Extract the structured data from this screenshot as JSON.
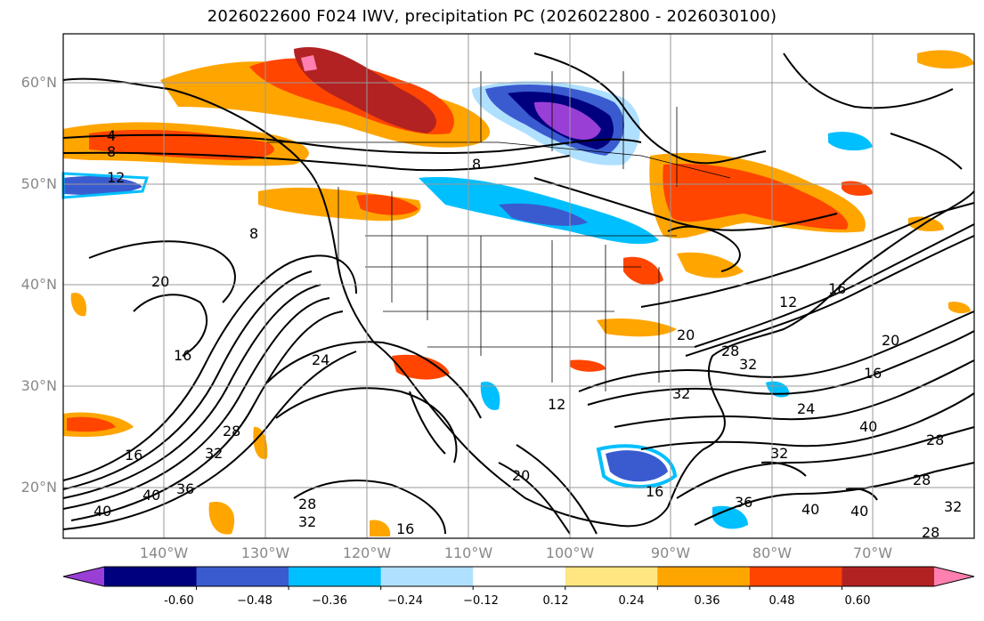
{
  "title": "2026022600 F024 IWV, precipitation PC (2026022800 - 2026030100)",
  "lat_labels": [
    "60°N",
    "50°N",
    "40°N",
    "30°N",
    "20°N"
  ],
  "lon_labels": [
    "140°W",
    "130°W",
    "120°W",
    "110°W",
    "100°W",
    "90°W",
    "80°W",
    "70°W"
  ],
  "colorbar": {
    "labels": [
      "-0.60",
      "−0.48",
      "−0.36",
      "−0.24",
      "−0.12",
      "0.12",
      "0.24",
      "0.36",
      "0.48",
      "0.60"
    ],
    "colors": [
      "#9a3fd6",
      "#00007f",
      "#3a5bd0",
      "#00bfff",
      "#b0e0ff",
      "#ffffff",
      "#ffe680",
      "#ffa500",
      "#ff4500",
      "#b22222",
      "#ff80b0"
    ]
  },
  "contour_labels": [
    "4",
    "8",
    "12",
    "16",
    "20",
    "24",
    "28",
    "32",
    "36",
    "40"
  ]
}
